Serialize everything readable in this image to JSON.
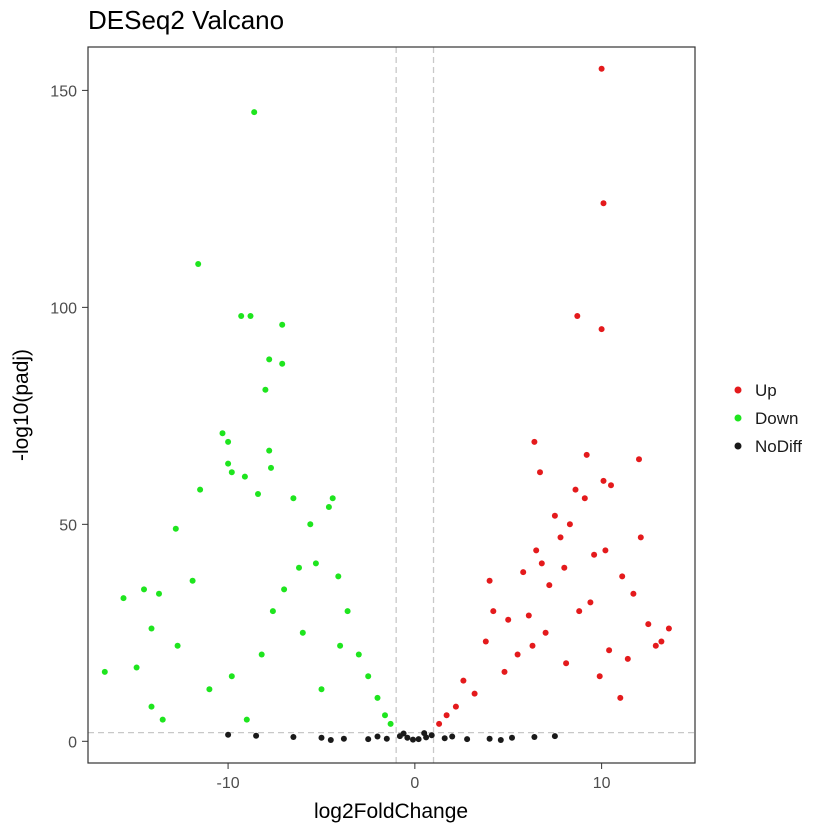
{
  "chart_data": {
    "type": "scatter",
    "title": "DESeq2 Valcano",
    "xlabel": "log2FoldChange",
    "ylabel": "-log10(padj)",
    "xlim": [
      -17.5,
      15
    ],
    "ylim": [
      -5,
      160
    ],
    "x_ticks": [
      -10,
      0,
      10
    ],
    "y_ticks": [
      0,
      50,
      100,
      150
    ],
    "x_tick_labels": [
      "-10",
      "0",
      "10"
    ],
    "y_tick_labels": [
      "0",
      "50",
      "100",
      "150"
    ],
    "grid": false,
    "reference_lines": {
      "vertical": [
        -1,
        1
      ],
      "horizontal": [
        2
      ]
    },
    "legend_position": "right",
    "series": [
      {
        "name": "Up",
        "color": "#e41a1c",
        "points": [
          [
            10.0,
            155
          ],
          [
            10.1,
            124
          ],
          [
            8.7,
            98
          ],
          [
            10.0,
            95
          ],
          [
            6.4,
            69
          ],
          [
            9.2,
            66
          ],
          [
            12.0,
            65
          ],
          [
            6.7,
            62
          ],
          [
            10.1,
            60
          ],
          [
            10.5,
            59
          ],
          [
            8.6,
            58
          ],
          [
            9.1,
            56
          ],
          [
            7.5,
            52
          ],
          [
            8.3,
            50
          ],
          [
            7.8,
            47
          ],
          [
            12.1,
            47
          ],
          [
            10.2,
            44
          ],
          [
            6.5,
            44
          ],
          [
            9.6,
            43
          ],
          [
            6.8,
            41
          ],
          [
            8.0,
            40
          ],
          [
            5.8,
            39
          ],
          [
            11.1,
            38
          ],
          [
            7.2,
            36
          ],
          [
            4.0,
            37
          ],
          [
            11.7,
            34
          ],
          [
            9.4,
            32
          ],
          [
            8.8,
            30
          ],
          [
            6.1,
            29
          ],
          [
            5.0,
            28
          ],
          [
            12.5,
            27
          ],
          [
            13.6,
            26
          ],
          [
            13.2,
            23
          ],
          [
            12.9,
            22
          ],
          [
            10.4,
            21
          ],
          [
            11.4,
            19
          ],
          [
            7.0,
            25
          ],
          [
            3.8,
            23
          ],
          [
            2.6,
            14
          ],
          [
            8.1,
            18
          ],
          [
            9.9,
            15
          ],
          [
            11.0,
            10
          ],
          [
            4.8,
            16
          ],
          [
            3.2,
            11
          ],
          [
            2.2,
            8
          ],
          [
            1.7,
            6
          ],
          [
            1.3,
            4
          ],
          [
            5.5,
            20
          ],
          [
            6.3,
            22
          ],
          [
            4.2,
            30
          ]
        ]
      },
      {
        "name": "Down",
        "color": "#1ee51e",
        "points": [
          [
            -8.6,
            145
          ],
          [
            -11.6,
            110
          ],
          [
            -8.8,
            98
          ],
          [
            -9.3,
            98
          ],
          [
            -7.1,
            96
          ],
          [
            -7.8,
            88
          ],
          [
            -7.1,
            87
          ],
          [
            -8.0,
            81
          ],
          [
            -10.3,
            71
          ],
          [
            -10.0,
            69
          ],
          [
            -7.8,
            67
          ],
          [
            -10.0,
            64
          ],
          [
            -7.7,
            63
          ],
          [
            -9.8,
            62
          ],
          [
            -9.1,
            61
          ],
          [
            -11.5,
            58
          ],
          [
            -8.4,
            57
          ],
          [
            -6.5,
            56
          ],
          [
            -4.4,
            56
          ],
          [
            -4.6,
            54
          ],
          [
            -12.8,
            49
          ],
          [
            -5.6,
            50
          ],
          [
            -11.9,
            37
          ],
          [
            -15.6,
            33
          ],
          [
            -14.5,
            35
          ],
          [
            -13.7,
            34
          ],
          [
            -14.1,
            26
          ],
          [
            -16.6,
            16
          ],
          [
            -14.9,
            17
          ],
          [
            -13.5,
            5
          ],
          [
            -14.1,
            8
          ],
          [
            -12.7,
            22
          ],
          [
            -11.0,
            12
          ],
          [
            -9.0,
            5
          ],
          [
            -7.6,
            30
          ],
          [
            -6.2,
            40
          ],
          [
            -5.3,
            41
          ],
          [
            -4.1,
            38
          ],
          [
            -3.6,
            30
          ],
          [
            -3.0,
            20
          ],
          [
            -2.5,
            15
          ],
          [
            -2.0,
            10
          ],
          [
            -1.6,
            6
          ],
          [
            -1.3,
            4
          ],
          [
            -6.0,
            25
          ],
          [
            -8.2,
            20
          ],
          [
            -9.8,
            15
          ],
          [
            -5.0,
            12
          ],
          [
            -4.0,
            22
          ],
          [
            -7.0,
            35
          ]
        ]
      },
      {
        "name": "NoDiff",
        "color": "#1a1a1a",
        "points": [
          [
            -10.0,
            1.5
          ],
          [
            -8.5,
            1.3
          ],
          [
            -6.5,
            1.0
          ],
          [
            -5.0,
            0.8
          ],
          [
            -3.8,
            0.6
          ],
          [
            -2.5,
            0.5
          ],
          [
            -1.5,
            0.6
          ],
          [
            -0.8,
            1.2
          ],
          [
            -0.4,
            0.8
          ],
          [
            -0.1,
            0.4
          ],
          [
            0.2,
            0.5
          ],
          [
            0.6,
            0.9
          ],
          [
            0.9,
            1.4
          ],
          [
            1.6,
            0.7
          ],
          [
            2.8,
            0.5
          ],
          [
            4.0,
            0.6
          ],
          [
            5.2,
            0.8
          ],
          [
            6.4,
            1.0
          ],
          [
            7.5,
            1.2
          ],
          [
            -0.6,
            1.8
          ],
          [
            0.5,
            1.9
          ],
          [
            -2.0,
            1.1
          ],
          [
            2.0,
            1.1
          ],
          [
            -4.5,
            0.3
          ],
          [
            4.6,
            0.3
          ]
        ]
      }
    ]
  }
}
